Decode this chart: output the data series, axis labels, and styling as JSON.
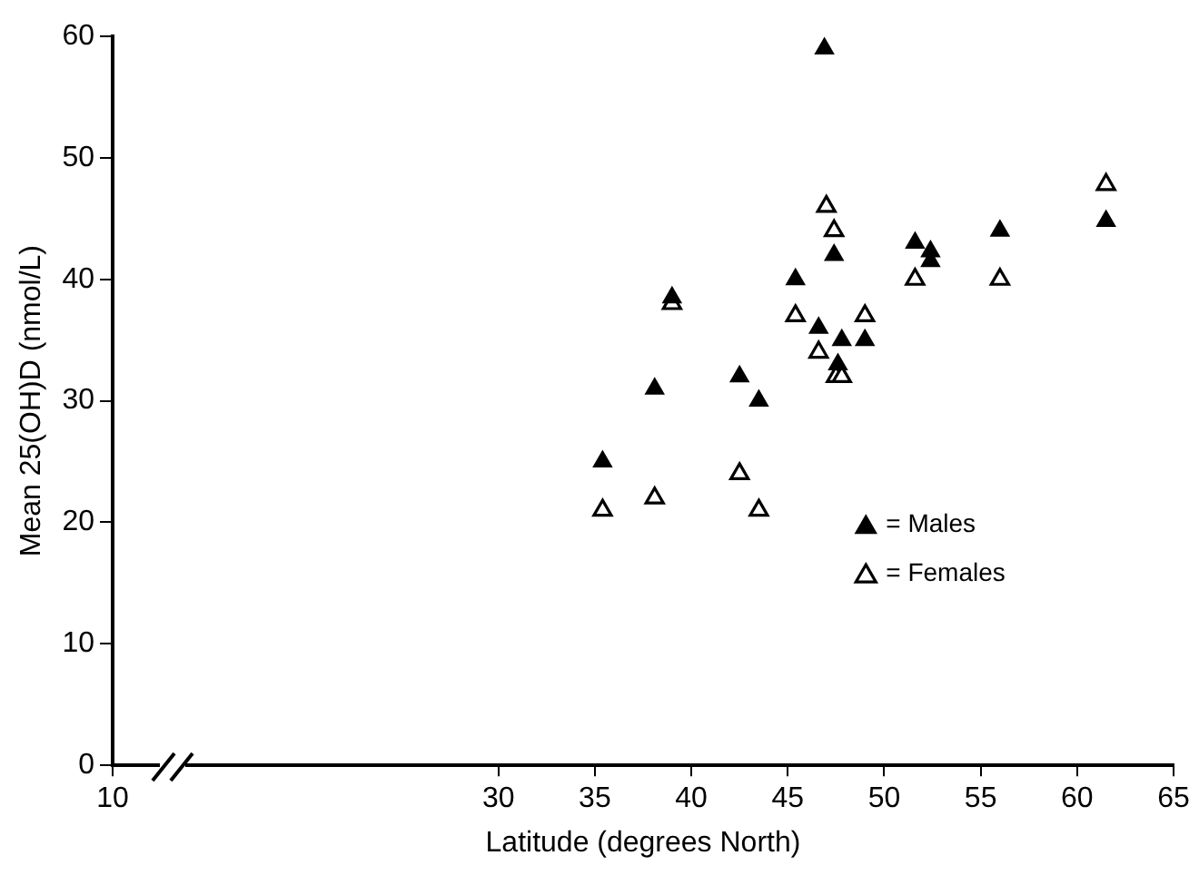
{
  "chart_data": {
    "type": "scatter",
    "xlabel": "Latitude (degrees North)",
    "ylabel": "Mean 25(OH)D (nmol/L)",
    "xlim": [
      10,
      65
    ],
    "xticks": [
      10,
      30,
      35,
      40,
      45,
      50,
      55,
      60,
      65
    ],
    "ylim": [
      0,
      60
    ],
    "yticks": [
      0,
      10,
      20,
      30,
      40,
      50,
      60
    ],
    "grid": false,
    "legend": "right",
    "marker": "triangle",
    "series": [
      {
        "name": "= Males",
        "color": "#000000",
        "x": [
          35.4,
          38.1,
          39.0,
          42.5,
          43.5,
          45.4,
          46.6,
          46.9,
          47.4,
          47.6,
          47.8,
          49.0,
          51.6,
          52.4,
          52.4,
          56.0,
          61.5
        ],
        "values": [
          25,
          31,
          38.5,
          32,
          30,
          40,
          36,
          59,
          42,
          33,
          35,
          35,
          43,
          42.3,
          41.5,
          44,
          44.8
        ]
      },
      {
        "name": "= Females",
        "color": "#000000",
        "x": [
          35.4,
          38.1,
          39.0,
          42.5,
          43.5,
          45.4,
          46.6,
          47.0,
          47.4,
          47.5,
          47.8,
          49.0,
          51.6,
          56.0,
          61.5
        ],
        "values": [
          21,
          22,
          38,
          24,
          21,
          37,
          34,
          46,
          44,
          32,
          32,
          37,
          40,
          40,
          47.8
        ]
      }
    ]
  }
}
